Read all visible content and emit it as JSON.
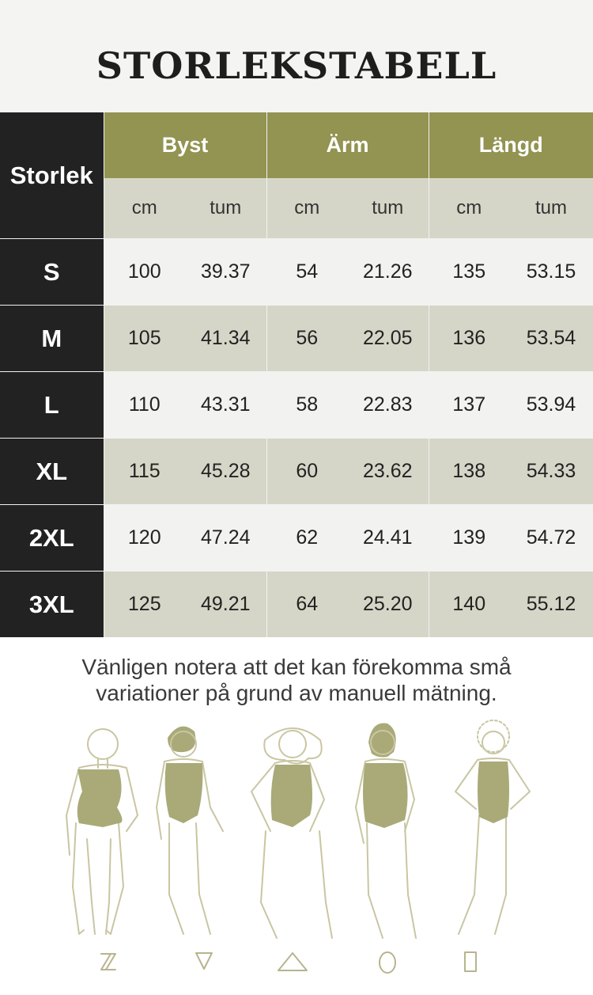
{
  "title": "STORLEKSTABELL",
  "table": {
    "size_header": "Storlek",
    "groups": [
      "Byst",
      "Ärm",
      "Längd"
    ],
    "units": [
      "cm",
      "tum"
    ],
    "rows": [
      {
        "size": "S",
        "vals": [
          "100",
          "39.37",
          "54",
          "21.26",
          "135",
          "53.15"
        ]
      },
      {
        "size": "M",
        "vals": [
          "105",
          "41.34",
          "56",
          "22.05",
          "136",
          "53.54"
        ]
      },
      {
        "size": "L",
        "vals": [
          "110",
          "43.31",
          "58",
          "22.83",
          "137",
          "53.94"
        ]
      },
      {
        "size": "XL",
        "vals": [
          "115",
          "45.28",
          "60",
          "23.62",
          "138",
          "54.33"
        ]
      },
      {
        "size": "2XL",
        "vals": [
          "120",
          "47.24",
          "62",
          "24.41",
          "139",
          "54.72"
        ]
      },
      {
        "size": "3XL",
        "vals": [
          "125",
          "49.21",
          "64",
          "25.20",
          "140",
          "55.12"
        ]
      }
    ]
  },
  "note": {
    "line1": "Vänligen notera att det kan förekomma små",
    "line2": "variationer på grund av manuell mätning."
  },
  "figures": [
    "hourglass-figure",
    "inverted-triangle-figure",
    "triangle-figure",
    "round-figure",
    "rectangle-figure"
  ],
  "colors": {
    "olive": "#939352",
    "dark": "#232223",
    "light_row": "#f2f2f0",
    "shaded_row": "#d6d6c8",
    "outline": "#c9c6a3",
    "bodysuit": "#a9aa78"
  }
}
